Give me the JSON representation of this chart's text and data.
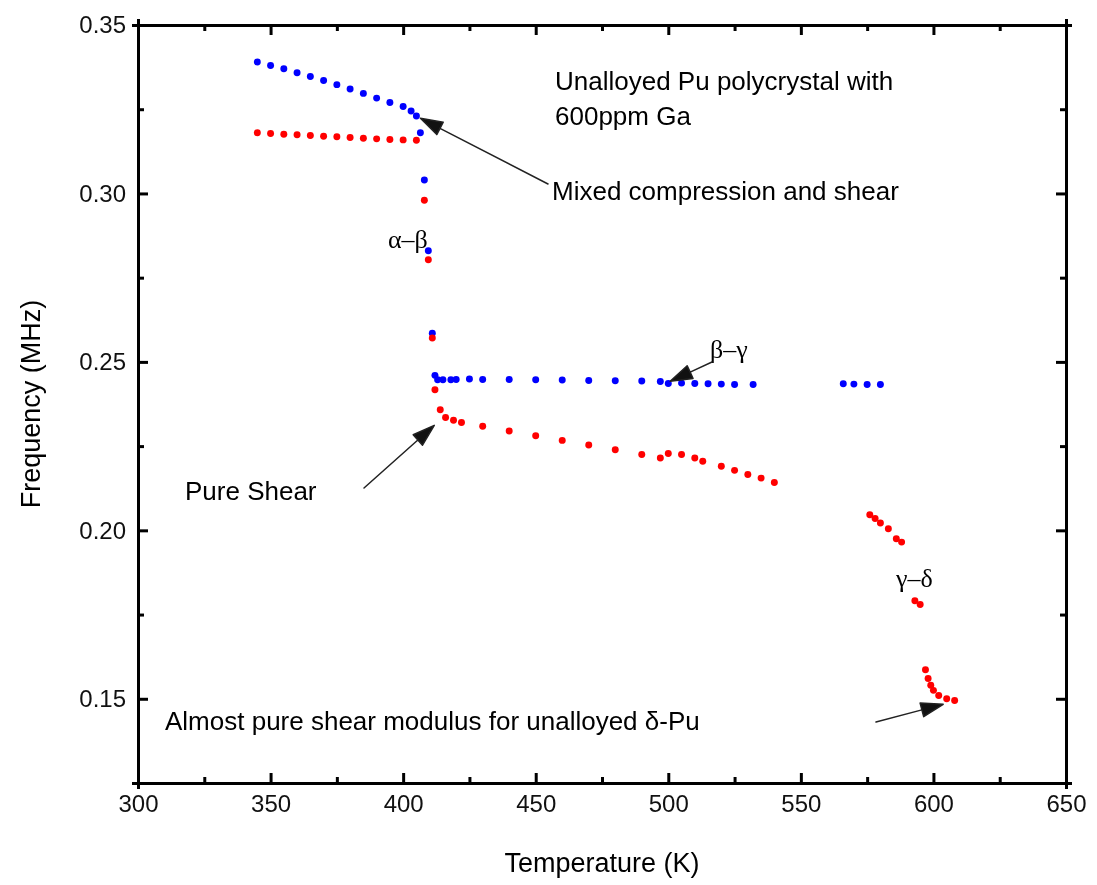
{
  "chart_data": {
    "type": "scatter",
    "xlabel": "Temperature (K)",
    "ylabel": "Frequency (MHz)",
    "xlim": [
      300,
      650
    ],
    "ylim": [
      0.125,
      0.35
    ],
    "xticks": [
      300,
      {
        "value": 325,
        "label": null
      },
      350,
      {
        "value": 375,
        "label": null
      },
      400,
      {
        "value": 425,
        "label": null
      },
      450,
      {
        "value": 475,
        "label": null
      },
      500,
      {
        "value": 525,
        "label": null
      },
      550,
      {
        "value": 575,
        "label": null
      },
      600,
      {
        "value": 625,
        "label": null
      },
      650
    ],
    "yticks": [
      {
        "value": 0.125,
        "label": null
      },
      {
        "value": 0.15,
        "label": "0.15"
      },
      {
        "value": 0.175,
        "label": null
      },
      {
        "value": 0.2,
        "label": "0.20"
      },
      {
        "value": 0.225,
        "label": null
      },
      {
        "value": 0.25,
        "label": "0.25"
      },
      {
        "value": 0.275,
        "label": null
      },
      {
        "value": 0.3,
        "label": "0.30"
      },
      {
        "value": 0.325,
        "label": null
      },
      {
        "value": 0.35,
        "label": "0.35"
      }
    ],
    "marker": "circle",
    "grid": false,
    "series": [
      {
        "color": "#0000ff",
        "x": [
          345,
          350,
          355,
          360,
          365,
          370,
          375,
          380,
          385,
          390,
          395,
          400,
          403,
          405,
          406.5,
          408,
          409.5,
          411,
          412,
          413,
          415,
          418,
          420,
          425,
          430,
          440,
          450,
          460,
          470,
          480,
          490,
          497,
          500,
          505,
          510,
          515,
          520,
          525,
          532,
          566,
          570,
          575,
          580
        ],
        "values": [
          0.339,
          0.338,
          0.337,
          0.3358,
          0.3347,
          0.3335,
          0.3323,
          0.331,
          0.3297,
          0.3283,
          0.327,
          0.3258,
          0.3245,
          0.323,
          0.318,
          0.304,
          0.283,
          0.2585,
          0.246,
          0.2447,
          0.2447,
          0.2447,
          0.2448,
          0.2449,
          0.2448,
          0.2448,
          0.2447,
          0.2446,
          0.2445,
          0.2444,
          0.2443,
          0.2442,
          0.2436,
          0.2437,
          0.2436,
          0.2435,
          0.2434,
          0.2433,
          0.2433,
          0.2435,
          0.2434,
          0.2433,
          0.2433
        ]
      },
      {
        "color": "#ff0000",
        "x": [
          345,
          350,
          355,
          360,
          365,
          370,
          375,
          380,
          385,
          390,
          395,
          400,
          405,
          408,
          409.5,
          411,
          412,
          414,
          416,
          419,
          422,
          430,
          440,
          450,
          460,
          470,
          480,
          490,
          497,
          500,
          505,
          510,
          513,
          520,
          525,
          530,
          535,
          540,
          576,
          578,
          580,
          583,
          586,
          588,
          593,
          595,
          597,
          598,
          599,
          600,
          602,
          605,
          608
        ],
        "values": [
          0.318,
          0.3178,
          0.3176,
          0.3174,
          0.3172,
          0.317,
          0.3168,
          0.3166,
          0.3164,
          0.3162,
          0.316,
          0.3159,
          0.3158,
          0.298,
          0.2803,
          0.2571,
          0.2417,
          0.2358,
          0.2335,
          0.2327,
          0.232,
          0.2309,
          0.2295,
          0.2281,
          0.2267,
          0.2253,
          0.2239,
          0.2225,
          0.2215,
          0.2228,
          0.2225,
          0.2215,
          0.2205,
          0.219,
          0.2178,
          0.2166,
          0.2155,
          0.2142,
          0.2046,
          0.2035,
          0.2022,
          0.2005,
          0.1975,
          0.1965,
          0.1791,
          0.178,
          0.1586,
          0.156,
          0.154,
          0.1525,
          0.151,
          0.15,
          0.1495
        ]
      }
    ],
    "annotations": [
      "Unalloyed Pu polycrystal with\n600ppm Ga",
      "Mixed compression and shear",
      "α–β",
      {
        "text": "β–γ",
        "x": 499,
        "y": 0.2436
      },
      "Pure Shear",
      "γ–δ",
      "Almost pure shear modulus for unalloyed δ-Pu"
    ]
  }
}
